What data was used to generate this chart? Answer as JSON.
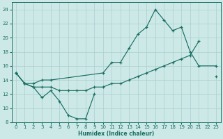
{
  "xlabel": "Humidex (Indice chaleur)",
  "bg_color": "#cce9e7",
  "line_color": "#1a6e62",
  "grid_color": "#aacfcc",
  "ylim": [
    8,
    25
  ],
  "xlim": [
    -0.5,
    23.5
  ],
  "yticks": [
    8,
    10,
    12,
    14,
    16,
    18,
    20,
    22,
    24
  ],
  "xticks": [
    0,
    1,
    2,
    3,
    4,
    5,
    6,
    7,
    8,
    9,
    10,
    11,
    12,
    13,
    14,
    15,
    16,
    17,
    18,
    19,
    20,
    21,
    22,
    23
  ],
  "line1_x": [
    0,
    1,
    2,
    3,
    4,
    5,
    6,
    7,
    8,
    9
  ],
  "line1_y": [
    15.0,
    13.5,
    13.0,
    11.5,
    12.5,
    11.0,
    9.0,
    8.5,
    8.5,
    12.0
  ],
  "line2_x": [
    0,
    1,
    2,
    3,
    4,
    10,
    11,
    12,
    13,
    14,
    15,
    16,
    17,
    18,
    19,
    20,
    21,
    23
  ],
  "line2_y": [
    15.0,
    13.5,
    13.5,
    14.0,
    14.0,
    15.0,
    16.5,
    16.5,
    18.5,
    20.5,
    21.5,
    24.0,
    22.5,
    21.0,
    21.5,
    18.0,
    16.0,
    16.0
  ],
  "line3_x": [
    0,
    1,
    2,
    3,
    4,
    5,
    6,
    7,
    8,
    9,
    10,
    11,
    12,
    13,
    14,
    15,
    16,
    17,
    18,
    19,
    20,
    21,
    22,
    23
  ],
  "line3_y": [
    15.0,
    13.5,
    13.0,
    13.0,
    13.0,
    12.5,
    12.5,
    12.5,
    12.5,
    13.0,
    13.0,
    13.5,
    13.5,
    14.0,
    14.5,
    15.0,
    15.5,
    16.0,
    16.5,
    17.0,
    17.5,
    19.5,
    null,
    14.5
  ]
}
